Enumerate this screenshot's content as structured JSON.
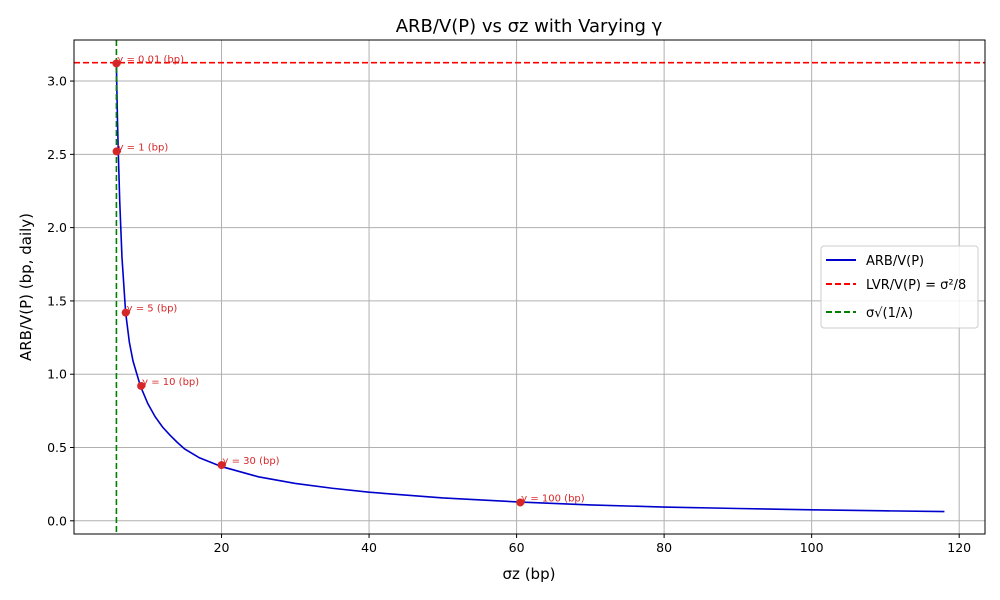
{
  "chart_data": {
    "type": "line",
    "title": "ARB/V(P) vs σz with Varying γ",
    "xlabel": "σz (bp)",
    "ylabel": "ARB/V(P) (bp, daily)",
    "xlim": [
      0,
      123.5
    ],
    "ylim": [
      -0.09,
      3.28
    ],
    "xticks": [
      20,
      40,
      60,
      80,
      100,
      120
    ],
    "yticks": [
      0.0,
      0.5,
      1.0,
      1.5,
      2.0,
      2.5,
      3.0
    ],
    "xtick_labels": [
      "20",
      "40",
      "60",
      "80",
      "100",
      "120"
    ],
    "ytick_labels": [
      "0.0",
      "0.5",
      "1.0",
      "1.5",
      "2.0",
      "2.5",
      "3.0"
    ],
    "grid": true,
    "legend_position": "right",
    "series": [
      {
        "name": "ARB/V(P)",
        "style": "solid",
        "color": "#0000cc",
        "x": [
          5.75,
          5.8,
          5.9,
          6.0,
          6.2,
          6.5,
          7.0,
          7.5,
          8.0,
          9.0,
          10,
          11,
          12,
          13,
          14,
          15,
          17,
          20,
          25,
          30,
          35,
          40,
          50,
          60.5,
          70,
          80,
          90,
          100,
          110,
          118
        ],
        "y": [
          3.12,
          2.97,
          2.72,
          2.52,
          2.18,
          1.8,
          1.42,
          1.22,
          1.09,
          0.92,
          0.8,
          0.71,
          0.64,
          0.585,
          0.535,
          0.49,
          0.43,
          0.37,
          0.3,
          0.255,
          0.222,
          0.195,
          0.156,
          0.128,
          0.108,
          0.094,
          0.084,
          0.075,
          0.068,
          0.063
        ]
      },
      {
        "name": "LVR/V(P) = σ²/8",
        "style": "dashed",
        "color": "#ff0000",
        "orientation": "horizontal",
        "y": 3.125
      },
      {
        "name": "σ√(1/λ)",
        "style": "dashed",
        "color": "#008000",
        "orientation": "vertical",
        "x": 5.75
      }
    ],
    "markers": [
      {
        "x": 5.75,
        "y": 3.12,
        "label": "γ = 0.01 (bp)"
      },
      {
        "x": 5.77,
        "y": 2.52,
        "label": "γ = 1 (bp)"
      },
      {
        "x": 7.0,
        "y": 1.42,
        "label": "γ = 5 (bp)"
      },
      {
        "x": 9.1,
        "y": 0.92,
        "label": "γ = 10 (bp)"
      },
      {
        "x": 20.0,
        "y": 0.38,
        "label": "γ = 30 (bp)"
      },
      {
        "x": 60.5,
        "y": 0.125,
        "label": "γ = 100 (bp)"
      }
    ],
    "legend": {
      "arb": "ARB/V(P)",
      "lvr": "LVR/V(P) = σ²/8",
      "sigma": "σ√(1/λ)"
    },
    "colors": {
      "arb": "#0000cc",
      "lvr": "#ff0000",
      "sigma": "#008000",
      "marker": "#d62728"
    }
  }
}
